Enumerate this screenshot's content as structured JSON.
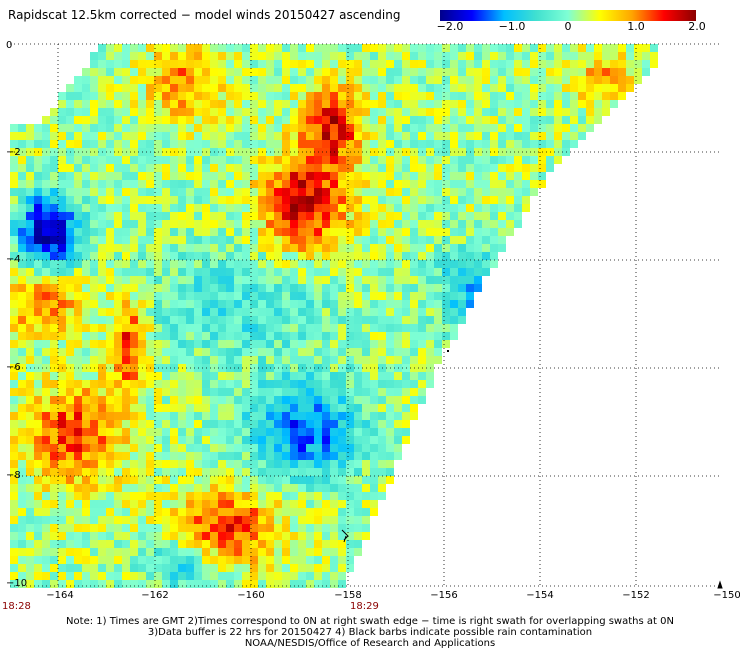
{
  "title": "Rapidscat 12.5km corrected − model winds 20150427 ascending",
  "colorbar": {
    "labels": [
      "−2.0",
      "−1.0",
      "0",
      "1.0",
      "2.0"
    ],
    "min": -2.0,
    "max": 2.0,
    "colors": [
      "#00008b",
      "#0000ff",
      "#00bfff",
      "#40e0d0",
      "#7fffd4",
      "#ffff00",
      "#ffa500",
      "#ff0000",
      "#8b0000"
    ]
  },
  "axes": {
    "y_ticks": [
      "0",
      "−2",
      "−4",
      "−6",
      "−8",
      "−10"
    ],
    "x_ticks": [
      "−164",
      "−162",
      "−160",
      "−158",
      "−156",
      "−154",
      "−152",
      "−150"
    ],
    "x_range": [
      -165,
      -150
    ],
    "y_range": [
      -10,
      0
    ],
    "grid": true
  },
  "times": [
    "18:28",
    "18:29"
  ],
  "notes": [
    "Note: 1) Times are GMT 2)Times correspond to 0N at right swath edge − time is right swath for overlapping swaths at 0N",
    "3)Data buffer is 22 hrs for 20150427 4) Black barbs indicate possible rain contamination",
    "NOAA/NESDIS/Office of Research and Applications"
  ]
}
